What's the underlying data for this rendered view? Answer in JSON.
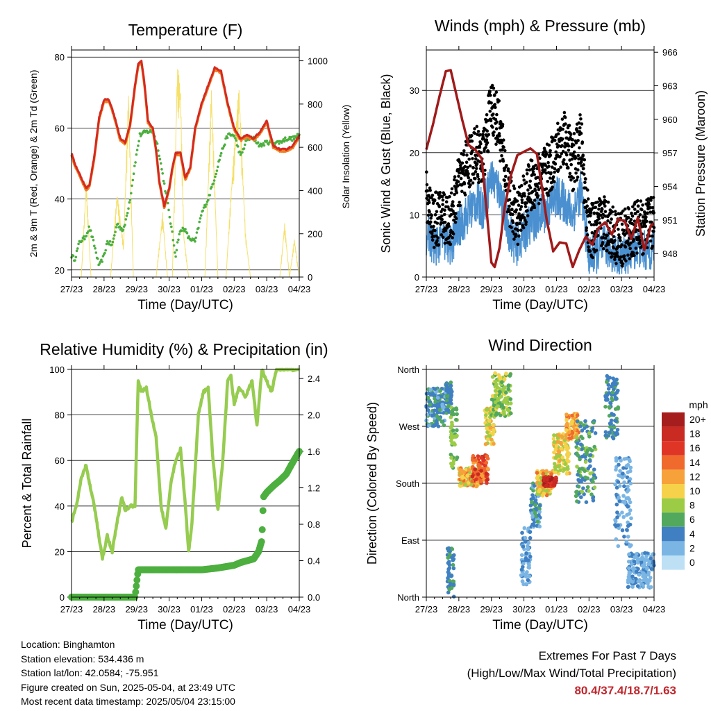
{
  "chart_data": [
    {
      "type": "line",
      "id": "temperature",
      "title": "Temperature (F)",
      "xlabel": "Time (Day/UTC)",
      "ylabel": "2m & 9m T (Red, Orange) & 2m Td (Green)",
      "y2label": "Solar Insolation (Yellow)",
      "x_ticks": [
        "27/23",
        "28/23",
        "29/23",
        "30/23",
        "01/23",
        "02/23",
        "03/23",
        "04/23"
      ],
      "ylim": [
        18,
        82
      ],
      "y_ticks": [
        20,
        40,
        60,
        80
      ],
      "y2lim": [
        0,
        1050
      ],
      "y2_ticks": [
        0,
        200,
        400,
        600,
        800,
        1000
      ],
      "grid": true,
      "colors": {
        "t2m": "#d42a20",
        "t9m": "#f07f22",
        "td": "#4caf3f",
        "solar": "#f5e06a"
      },
      "series": [
        {
          "key": "t2m",
          "x": [
            0,
            0.1,
            0.3,
            0.45,
            0.55,
            0.7,
            0.85,
            1.0,
            1.15,
            1.3,
            1.5,
            1.65,
            1.8,
            1.95,
            2.05,
            2.15,
            2.25,
            2.35,
            2.5,
            2.6,
            2.7,
            2.85,
            3.0,
            3.1,
            3.2,
            3.35,
            3.5,
            3.65,
            3.8,
            4.0,
            4.2,
            4.4,
            4.6,
            4.8,
            5.0,
            5.2,
            5.4,
            5.6,
            5.8,
            6.0,
            6.2,
            6.4,
            6.6,
            6.8,
            7.0
          ],
          "values": [
            53,
            50,
            46,
            43,
            44,
            52,
            63,
            68,
            68,
            64,
            57,
            56,
            61,
            72,
            78,
            79,
            72,
            62,
            60,
            54,
            45,
            38,
            43,
            49,
            53,
            53,
            46,
            49,
            60,
            67,
            72,
            77,
            76,
            67,
            60,
            57,
            58,
            57,
            59,
            62,
            55,
            54,
            54,
            55,
            58
          ]
        },
        {
          "key": "td",
          "x": [
            0,
            0.1,
            0.25,
            0.4,
            0.55,
            0.7,
            0.85,
            1.0,
            1.1,
            1.25,
            1.4,
            1.6,
            1.8,
            1.95,
            2.1,
            2.3,
            2.5,
            2.65,
            2.8,
            2.95,
            3.1,
            3.2,
            3.3,
            3.45,
            3.6,
            3.8,
            4.0,
            4.2,
            4.4,
            4.6,
            4.8,
            5.0,
            5.2,
            5.4,
            5.6,
            5.8,
            6.0,
            6.2,
            6.4,
            6.6,
            6.8,
            7.0
          ],
          "values": [
            24,
            23,
            28,
            29,
            32,
            27,
            21,
            24,
            28,
            27,
            33,
            31,
            40,
            50,
            58,
            59,
            59,
            55,
            47,
            39,
            30,
            24,
            30,
            32,
            29,
            28,
            36,
            40,
            46,
            53,
            58,
            58,
            52,
            57,
            57,
            55,
            56,
            56,
            56,
            57,
            57,
            58
          ]
        },
        {
          "key": "solar",
          "x": [
            0,
            0.3,
            0.45,
            0.6,
            0.75,
            0.95,
            1.2,
            1.4,
            1.6,
            1.75,
            1.9,
            2.0,
            2.2,
            2.4,
            2.6,
            2.8,
            2.95,
            3.1,
            3.25,
            3.35,
            3.45,
            3.6,
            3.8,
            4.1,
            4.3,
            4.5,
            4.75,
            4.9,
            5.05,
            5.15,
            5.25,
            5.35,
            5.5,
            5.75,
            5.95,
            6.2,
            6.4,
            6.55,
            6.7,
            6.85,
            7.0
          ],
          "values": [
            0,
            0,
            450,
            0,
            0,
            0,
            0,
            400,
            150,
            880,
            0,
            0,
            0,
            0,
            0,
            300,
            0,
            0,
            980,
            900,
            200,
            0,
            0,
            0,
            900,
            0,
            0,
            400,
            700,
            900,
            550,
            200,
            0,
            0,
            0,
            0,
            0,
            250,
            0,
            180,
            0
          ]
        }
      ]
    },
    {
      "type": "scatter",
      "id": "winds",
      "title": "Winds (mph) & Pressure (mb)",
      "xlabel": "Time (Day/UTC)",
      "ylabel": "Sonic Wind & Gust (Blue, Black)",
      "y2label": "Station Pressure (Maroon)",
      "x_ticks": [
        "27/23",
        "28/23",
        "29/23",
        "30/23",
        "01/23",
        "02/23",
        "03/23",
        "04/23"
      ],
      "ylim": [
        0,
        36.5
      ],
      "y_ticks": [
        0,
        10,
        20,
        30
      ],
      "y2lim": [
        945.9,
        966.2
      ],
      "y2_ticks": [
        948,
        951,
        954,
        957,
        960,
        963,
        966
      ],
      "grid": true,
      "colors": {
        "wind": "#4a90d0",
        "gust": "#000000",
        "pressure": "#a01a1a"
      },
      "series": [
        {
          "key": "wind",
          "x": [
            0,
            0.25,
            0.5,
            0.75,
            1.0,
            1.25,
            1.5,
            1.75,
            2.0,
            2.25,
            2.5,
            2.75,
            3.0,
            3.25,
            3.5,
            3.75,
            4.0,
            4.25,
            4.5,
            4.75,
            5.0,
            5.25,
            5.5,
            5.75,
            6.0,
            6.25,
            6.5,
            6.75,
            7.0
          ],
          "values": [
            7,
            5,
            6,
            5,
            8,
            10,
            12,
            11,
            16,
            14,
            8,
            5,
            7,
            9,
            10,
            11,
            13,
            12,
            10,
            14,
            3,
            4,
            5,
            4,
            3,
            4,
            5,
            4,
            5
          ]
        },
        {
          "key": "gust",
          "x": [
            0,
            0.25,
            0.5,
            0.75,
            1.0,
            1.25,
            1.5,
            1.75,
            2.0,
            2.25,
            2.5,
            2.75,
            3.0,
            3.25,
            3.5,
            3.75,
            4.0,
            4.25,
            4.5,
            4.75,
            5.0,
            5.25,
            5.5,
            5.75,
            6.0,
            6.25,
            6.5,
            6.75,
            7.0
          ],
          "values": [
            13,
            9,
            10,
            9,
            15,
            18,
            20,
            19,
            28,
            24,
            14,
            9,
            12,
            15,
            16,
            17,
            20,
            23,
            18,
            22,
            7,
            8,
            9,
            7,
            6,
            7,
            8,
            8,
            9
          ]
        },
        {
          "key": "pressure",
          "x": [
            0,
            0.2,
            0.4,
            0.6,
            0.75,
            0.9,
            1.1,
            1.3,
            1.5,
            1.7,
            1.85,
            2.0,
            2.1,
            2.25,
            2.4,
            2.6,
            2.8,
            3.0,
            3.2,
            3.4,
            3.55,
            3.7,
            3.9,
            4.1,
            4.3,
            4.5,
            4.7,
            4.9,
            5.1,
            5.3,
            5.5,
            5.7,
            5.9,
            6.1,
            6.3,
            6.5,
            6.7,
            6.9,
            7.0
          ],
          "values": [
            957.3,
            959.5,
            962,
            964.3,
            964.4,
            962.5,
            960,
            957.7,
            957.3,
            956.5,
            952,
            947.2,
            946.8,
            948.5,
            952,
            955,
            956.8,
            957.1,
            957.4,
            956.9,
            954,
            951,
            948.2,
            949,
            948.9,
            946.8,
            948.3,
            949.5,
            948.8,
            950.3,
            950.8,
            949.7,
            951.1,
            950.9,
            949.3,
            951.2,
            948.3,
            950.5,
            950.7
          ]
        }
      ]
    },
    {
      "type": "line",
      "id": "humidity",
      "title": "Relative Humidity (%) & Precipitation (in)",
      "xlabel": "Time (Day/UTC)",
      "ylabel": "Percent & Total Rainfall",
      "x_ticks": [
        "27/23",
        "28/23",
        "29/23",
        "30/23",
        "01/23",
        "02/23",
        "03/23",
        "04/23"
      ],
      "ylim": [
        0,
        100
      ],
      "y_ticks": [
        0,
        20,
        40,
        60,
        80,
        100
      ],
      "y2lim": [
        0,
        2.5
      ],
      "y2_ticks": [
        "0.0",
        "0.4",
        "0.8",
        "1.2",
        "1.6",
        "2.0",
        "2.4"
      ],
      "grid": true,
      "colors": {
        "rh": "#96cc50",
        "precip": "#4caf3f"
      },
      "series": [
        {
          "key": "rh",
          "x": [
            0,
            0.15,
            0.3,
            0.45,
            0.55,
            0.7,
            0.85,
            0.95,
            1.1,
            1.25,
            1.4,
            1.55,
            1.65,
            1.8,
            1.95,
            2.05,
            2.15,
            2.3,
            2.45,
            2.6,
            2.75,
            2.9,
            3.05,
            3.2,
            3.35,
            3.5,
            3.6,
            3.7,
            3.9,
            4.05,
            4.2,
            4.35,
            4.5,
            4.65,
            4.8,
            4.9,
            5.0,
            5.15,
            5.35,
            5.55,
            5.7,
            5.85,
            6.0,
            6.15,
            6.3,
            6.5,
            6.7,
            6.85,
            7.0
          ],
          "values": [
            33,
            40,
            52,
            58,
            50,
            40,
            26,
            17,
            27,
            20,
            33,
            44,
            38,
            40,
            40,
            95,
            90,
            92,
            80,
            70,
            40,
            30,
            50,
            60,
            65,
            40,
            20,
            32,
            80,
            90,
            92,
            60,
            38,
            60,
            95,
            97,
            85,
            92,
            88,
            95,
            75,
            100,
            95,
            90,
            100,
            100,
            100,
            100,
            100
          ]
        },
        {
          "key": "precip",
          "x": [
            0,
            0.5,
            1.0,
            1.5,
            1.95,
            2.05,
            2.5,
            3.0,
            3.5,
            4.0,
            4.5,
            5.0,
            5.2,
            5.4,
            5.6,
            5.75,
            5.85,
            5.9,
            6.0,
            6.2,
            6.4,
            6.6,
            6.8,
            7.0
          ],
          "values": [
            0,
            0,
            0,
            0,
            0,
            0.3,
            0.3,
            0.3,
            0.3,
            0.3,
            0.32,
            0.35,
            0.38,
            0.4,
            0.42,
            0.5,
            0.62,
            1.1,
            1.15,
            1.22,
            1.28,
            1.35,
            1.48,
            1.6
          ]
        }
      ]
    },
    {
      "type": "scatter",
      "id": "direction",
      "title": "Wind Direction",
      "xlabel": "Time (Day/UTC)",
      "ylabel": "Direction (Colored By Speed)",
      "x_ticks": [
        "27/23",
        "28/23",
        "29/23",
        "30/23",
        "01/23",
        "02/23",
        "03/23",
        "04/23"
      ],
      "y_labels": [
        "North",
        "East",
        "South",
        "West",
        "North"
      ],
      "ylim": [
        0,
        360
      ],
      "grid": true,
      "legend": {
        "title": "mph",
        "labels": [
          "20+",
          "18",
          "16",
          "14",
          "12",
          "10",
          "8",
          "6",
          "4",
          "2",
          "0"
        ],
        "colors": [
          "#a51d1d",
          "#c92a22",
          "#df3526",
          "#ef6a2c",
          "#f7a13a",
          "#f5d24a",
          "#9ccc46",
          "#52a85d",
          "#3f7fc2",
          "#7ab5e3",
          "#bde0f5"
        ]
      },
      "clusters": [
        {
          "x": [
            0.0,
            0.6
          ],
          "dir": [
            270,
            330
          ],
          "speed": [
            2,
            6
          ]
        },
        {
          "x": [
            0.6,
            0.8
          ],
          "dir": [
            290,
            340
          ],
          "speed": [
            3,
            6
          ]
        },
        {
          "x": [
            0.75,
            0.95
          ],
          "dir": [
            200,
            300
          ],
          "speed": [
            5,
            9
          ]
        },
        {
          "x": [
            1.0,
            1.7
          ],
          "dir": [
            175,
            205
          ],
          "speed": [
            8,
            14
          ]
        },
        {
          "x": [
            1.4,
            1.9
          ],
          "dir": [
            180,
            225
          ],
          "speed": [
            12,
            18
          ]
        },
        {
          "x": [
            1.8,
            2.1
          ],
          "dir": [
            240,
            300
          ],
          "speed": [
            7,
            12
          ]
        },
        {
          "x": [
            2.0,
            2.6
          ],
          "dir": [
            285,
            355
          ],
          "speed": [
            5,
            10
          ]
        },
        {
          "x": [
            2.9,
            3.2
          ],
          "dir": [
            20,
            110
          ],
          "speed": [
            1,
            4
          ]
        },
        {
          "x": [
            3.2,
            3.5
          ],
          "dir": [
            110,
            180
          ],
          "speed": [
            2,
            6
          ]
        },
        {
          "x": [
            3.4,
            3.9
          ],
          "dir": [
            160,
            200
          ],
          "speed": [
            8,
            14
          ]
        },
        {
          "x": [
            3.6,
            4.0
          ],
          "dir": [
            175,
            190
          ],
          "speed": [
            16,
            20
          ]
        },
        {
          "x": [
            3.9,
            4.4
          ],
          "dir": [
            195,
            260
          ],
          "speed": [
            7,
            12
          ]
        },
        {
          "x": [
            4.3,
            4.7
          ],
          "dir": [
            250,
            290
          ],
          "speed": [
            9,
            14
          ]
        },
        {
          "x": [
            4.6,
            5.2
          ],
          "dir": [
            150,
            280
          ],
          "speed": [
            3,
            8
          ]
        },
        {
          "x": [
            5.5,
            5.9
          ],
          "dir": [
            250,
            350
          ],
          "speed": [
            3,
            6
          ]
        },
        {
          "x": [
            5.8,
            6.3
          ],
          "dir": [
            80,
            220
          ],
          "speed": [
            1,
            4
          ]
        },
        {
          "x": [
            6.2,
            7.0
          ],
          "dir": [
            15,
            70
          ],
          "speed": [
            1,
            4
          ]
        },
        {
          "x": [
            0.65,
            0.85
          ],
          "dir": [
            0,
            80
          ],
          "speed": [
            3,
            7
          ]
        }
      ]
    }
  ],
  "footer": {
    "location": "Location: Binghamton",
    "elevation": "Station elevation: 534.436 m",
    "latlon": "Station lat/lon: 42.0584; -75.951",
    "created": "Figure created on Sun, 2025-05-04, at 23:49 UTC",
    "recent": "Most recent data timestamp: 2025/05/04 23:15:00",
    "extremes_line1": "Extremes For Past 7 Days",
    "extremes_line2": "(High/Low/Max Wind/Total Precipitation)",
    "extremes_values": "80.4/37.4/18.7/1.63"
  }
}
